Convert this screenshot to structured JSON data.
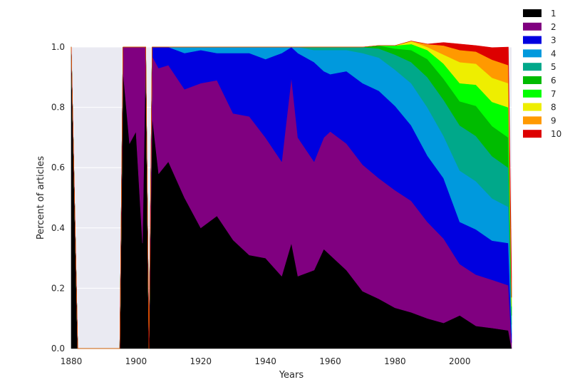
{
  "chart_data": {
    "type": "area",
    "stacked": true,
    "normalized": true,
    "xlabel": "Years",
    "ylabel": "Percent of articles",
    "xlim": [
      1880,
      2016
    ],
    "ylim": [
      0,
      1.0
    ],
    "x_ticks": [
      1880,
      1900,
      1920,
      1940,
      1960,
      1980,
      2000
    ],
    "y_ticks": [
      0.0,
      0.2,
      0.4,
      0.6,
      0.8,
      1.0
    ],
    "y_tick_labels": [
      "0.0",
      "0.2",
      "0.4",
      "0.6",
      "0.8",
      "1.0"
    ],
    "grid": true,
    "legend_position": "top-right outside",
    "colors": {
      "background": "#EAEAF2",
      "grid": "#FFFFFF",
      "text": "#262626"
    },
    "x": [
      1880,
      1882,
      1895,
      1896,
      1898,
      1900,
      1902,
      1903,
      1904,
      1905,
      1907,
      1910,
      1915,
      1920,
      1925,
      1930,
      1935,
      1940,
      1945,
      1948,
      1950,
      1955,
      1958,
      1960,
      1965,
      1970,
      1975,
      1980,
      1985,
      1990,
      1995,
      2000,
      2005,
      2010,
      2015,
      2016
    ],
    "series": [
      {
        "name": "1",
        "color": "#000000",
        "values": [
          1.0,
          0.0,
          0.0,
          0.92,
          0.68,
          0.72,
          0.35,
          0.99,
          0.0,
          0.77,
          0.58,
          0.62,
          0.5,
          0.4,
          0.44,
          0.36,
          0.31,
          0.3,
          0.24,
          0.35,
          0.24,
          0.26,
          0.33,
          0.31,
          0.26,
          0.19,
          0.165,
          0.135,
          0.12,
          0.1,
          0.085,
          0.11,
          0.075,
          0.068,
          0.06,
          0.0
        ]
      },
      {
        "name": "2",
        "color": "#800080",
        "values": [
          0.0,
          0.0,
          0.0,
          0.08,
          0.32,
          0.28,
          0.65,
          0.01,
          0.0,
          0.2,
          0.35,
          0.32,
          0.36,
          0.48,
          0.45,
          0.42,
          0.46,
          0.4,
          0.38,
          0.55,
          0.46,
          0.36,
          0.37,
          0.41,
          0.42,
          0.42,
          0.4,
          0.39,
          0.37,
          0.32,
          0.28,
          0.17,
          0.17,
          0.16,
          0.15,
          0.02
        ]
      },
      {
        "name": "3",
        "color": "#0000E0",
        "values": [
          0,
          0,
          0,
          0,
          0,
          0,
          0,
          0,
          0,
          0.03,
          0.07,
          0.06,
          0.12,
          0.11,
          0.09,
          0.2,
          0.21,
          0.26,
          0.36,
          0.1,
          0.28,
          0.33,
          0.22,
          0.19,
          0.24,
          0.27,
          0.29,
          0.28,
          0.25,
          0.22,
          0.2,
          0.14,
          0.15,
          0.13,
          0.14,
          0.03
        ]
      },
      {
        "name": "4",
        "color": "#0099DD",
        "values": [
          0,
          0,
          0,
          0,
          0,
          0,
          0,
          0,
          0,
          0,
          0,
          0,
          0.02,
          0.01,
          0.02,
          0.02,
          0.02,
          0.04,
          0.02,
          0.0,
          0.02,
          0.04,
          0.07,
          0.08,
          0.07,
          0.1,
          0.11,
          0.12,
          0.14,
          0.16,
          0.14,
          0.17,
          0.16,
          0.14,
          0.12,
          0.03
        ]
      },
      {
        "name": "5",
        "color": "#00A88A",
        "values": [
          0,
          0,
          0,
          0,
          0,
          0,
          0,
          0,
          0,
          0,
          0,
          0,
          0,
          0,
          0,
          0,
          0,
          0,
          0,
          0,
          0,
          0.01,
          0.01,
          0.01,
          0.01,
          0.02,
          0.03,
          0.05,
          0.07,
          0.1,
          0.12,
          0.15,
          0.15,
          0.14,
          0.13,
          0.03
        ]
      },
      {
        "name": "6",
        "color": "#00BB00",
        "values": [
          0,
          0,
          0,
          0,
          0,
          0,
          0,
          0,
          0,
          0,
          0,
          0,
          0,
          0,
          0,
          0,
          0,
          0,
          0,
          0,
          0,
          0,
          0,
          0,
          0,
          0,
          0.01,
          0.02,
          0.04,
          0.06,
          0.07,
          0.08,
          0.1,
          0.1,
          0.1,
          0.02
        ]
      },
      {
        "name": "7",
        "color": "#00FF00",
        "values": [
          0,
          0,
          0,
          0,
          0,
          0,
          0,
          0,
          0,
          0,
          0,
          0,
          0,
          0,
          0,
          0,
          0,
          0,
          0,
          0,
          0,
          0,
          0,
          0,
          0,
          0,
          0,
          0.01,
          0.02,
          0.03,
          0.05,
          0.06,
          0.07,
          0.08,
          0.1,
          0.01
        ]
      },
      {
        "name": "8",
        "color": "#EEEE00",
        "values": [
          0,
          0,
          0,
          0,
          0,
          0,
          0,
          0,
          0,
          0,
          0,
          0,
          0,
          0,
          0,
          0,
          0,
          0,
          0,
          0,
          0,
          0,
          0,
          0,
          0,
          0,
          0,
          0,
          0.01,
          0.01,
          0.03,
          0.07,
          0.07,
          0.08,
          0.08,
          0.03
        ]
      },
      {
        "name": "9",
        "color": "#FF9900",
        "values": [
          0,
          0,
          0,
          0,
          0,
          0,
          0,
          0,
          0,
          0,
          0,
          0,
          0,
          0,
          0,
          0,
          0,
          0,
          0,
          0,
          0,
          0,
          0,
          0,
          0,
          0,
          0,
          0,
          0,
          0.01,
          0.03,
          0.04,
          0.04,
          0.06,
          0.06,
          0.0
        ]
      },
      {
        "name": "10",
        "color": "#DD0000",
        "values": [
          0,
          0,
          0,
          0,
          0,
          0,
          0,
          0,
          0,
          0,
          0,
          0,
          0,
          0,
          0,
          0,
          0,
          0,
          0,
          0,
          0,
          0,
          0,
          0,
          0,
          0,
          0,
          0,
          0,
          0,
          0.01,
          0.02,
          0.02,
          0.04,
          0.06,
          0.07
        ]
      }
    ]
  }
}
